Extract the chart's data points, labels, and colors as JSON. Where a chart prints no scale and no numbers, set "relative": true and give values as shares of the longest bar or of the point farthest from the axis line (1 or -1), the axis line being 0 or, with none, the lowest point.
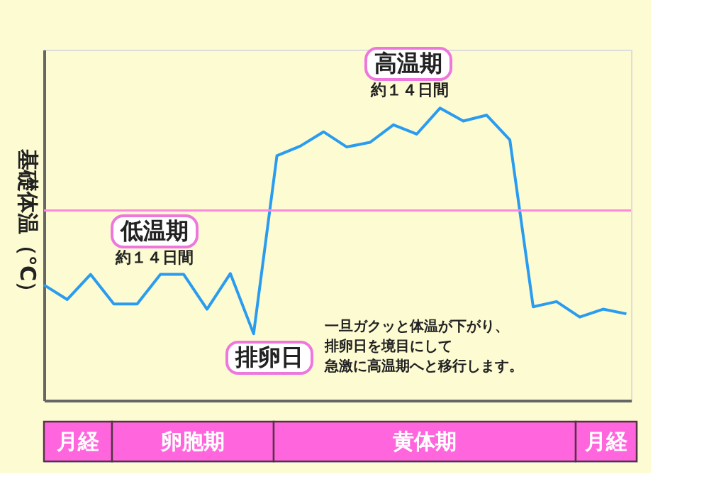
{
  "chart_data": {
    "type": "line",
    "ylabel": "基礎体温（℃）",
    "relative": true,
    "grid": false,
    "categories": [
      null,
      null,
      null,
      null,
      null,
      null,
      null,
      null,
      null,
      null,
      null,
      null,
      null,
      null,
      null,
      null,
      null,
      null,
      null,
      null,
      null,
      null,
      null,
      null,
      null,
      null
    ],
    "series": [
      {
        "color": "#2a9cf0",
        "values": [
          0.395,
          0.345,
          0.431,
          0.33,
          0.33,
          0.431,
          0.431,
          0.312,
          0.434,
          0.228,
          0.837,
          0.87,
          0.919,
          0.867,
          0.883,
          0.943,
          0.911,
          1.0,
          0.956,
          0.976,
          0.891,
          0.32,
          0.338,
          0.285,
          0.312,
          0.296
        ]
      }
    ],
    "ref_lines": [
      {
        "axis": "y",
        "value": 0.65,
        "color": "#ff88dd"
      }
    ],
    "annotations": [
      "高温期",
      "約１４日間",
      "低温期",
      "約１４日間",
      "排卵日",
      "一旦ガクッと体温が下がり、",
      "排卵日を境目にして",
      "急激に高温期へと移行します。",
      "月経",
      "卵胞期",
      "黄体期",
      "月経"
    ]
  }
}
